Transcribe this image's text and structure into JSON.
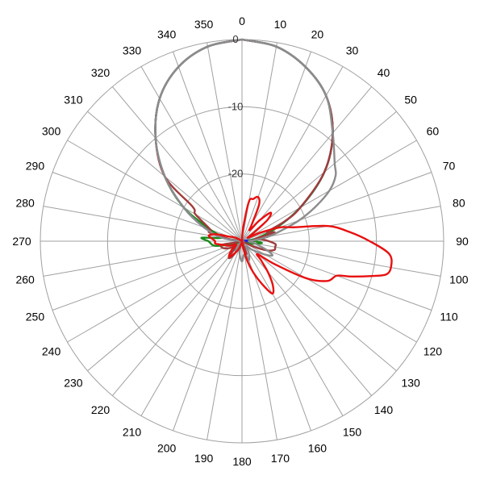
{
  "chart_data": {
    "type": "line",
    "projection": "polar",
    "angle_direction": "clockwise",
    "angle_zero": "top",
    "angle_labels": [
      "0",
      "10",
      "20",
      "30",
      "40",
      "50",
      "60",
      "70",
      "80",
      "90",
      "100",
      "110",
      "120",
      "130",
      "140",
      "150",
      "160",
      "170",
      "180",
      "190",
      "200",
      "210",
      "220",
      "230",
      "240",
      "250",
      "260",
      "270",
      "280",
      "290",
      "300",
      "310",
      "320",
      "330",
      "340",
      "350"
    ],
    "radial_tick_labels": [
      "0",
      "-10",
      "-20"
    ],
    "radial_range_db": [
      -30,
      0
    ],
    "grid": true,
    "legend": "none",
    "series": [
      {
        "color": "#2020e0",
        "points": [
          [
            0,
            0
          ],
          [
            10,
            -0.6
          ],
          [
            20,
            -2.4
          ],
          [
            30,
            -5
          ],
          [
            40,
            -9
          ],
          [
            50,
            -14
          ],
          [
            60,
            -20
          ],
          [
            70,
            -25
          ],
          [
            80,
            -28
          ],
          [
            90,
            -30
          ],
          [
            100,
            -29
          ],
          [
            110,
            -29
          ],
          [
            130,
            -30
          ],
          [
            150,
            -30
          ],
          [
            170,
            -30
          ],
          [
            190,
            -30
          ],
          [
            210,
            -30
          ],
          [
            230,
            -30
          ],
          [
            250,
            -30
          ],
          [
            270,
            -30
          ],
          [
            280,
            -27
          ],
          [
            290,
            -24
          ],
          [
            300,
            -20
          ],
          [
            310,
            -15
          ],
          [
            320,
            -10
          ],
          [
            330,
            -5.5
          ],
          [
            340,
            -2.4
          ],
          [
            350,
            -0.6
          ],
          [
            360,
            0
          ]
        ]
      },
      {
        "color": "#1a8a1a",
        "points": [
          [
            0,
            0
          ],
          [
            10,
            -0.6
          ],
          [
            20,
            -2.4
          ],
          [
            30,
            -5
          ],
          [
            40,
            -9
          ],
          [
            50,
            -14
          ],
          [
            60,
            -20
          ],
          [
            70,
            -25
          ],
          [
            80,
            -28
          ],
          [
            85,
            -29
          ],
          [
            90,
            -28
          ],
          [
            95,
            -27
          ],
          [
            100,
            -28
          ],
          [
            110,
            -29
          ],
          [
            130,
            -30
          ],
          [
            150,
            -30
          ],
          [
            170,
            -30
          ],
          [
            190,
            -30
          ],
          [
            210,
            -30
          ],
          [
            230,
            -30
          ],
          [
            250,
            -29
          ],
          [
            260,
            -26
          ],
          [
            270,
            -25
          ],
          [
            275,
            -24
          ],
          [
            280,
            -27
          ],
          [
            290,
            -25
          ],
          [
            300,
            -20
          ],
          [
            310,
            -15
          ],
          [
            320,
            -10
          ],
          [
            330,
            -5.5
          ],
          [
            340,
            -2.4
          ],
          [
            350,
            -0.6
          ],
          [
            360,
            0
          ]
        ]
      },
      {
        "color": "#a03c3c",
        "points": [
          [
            0,
            0
          ],
          [
            10,
            -0.6
          ],
          [
            20,
            -2.4
          ],
          [
            30,
            -5
          ],
          [
            40,
            -9
          ],
          [
            50,
            -14
          ],
          [
            60,
            -20
          ],
          [
            65,
            -23
          ],
          [
            70,
            -26
          ],
          [
            75,
            -25
          ],
          [
            80,
            -28
          ],
          [
            85,
            -27
          ],
          [
            90,
            -26
          ],
          [
            95,
            -25
          ],
          [
            100,
            -25
          ],
          [
            105,
            -25
          ],
          [
            110,
            -26
          ],
          [
            115,
            -28
          ],
          [
            120,
            -30
          ],
          [
            140,
            -30
          ],
          [
            160,
            -28
          ],
          [
            170,
            -29
          ],
          [
            180,
            -30
          ],
          [
            200,
            -30
          ],
          [
            210,
            -28
          ],
          [
            215,
            -27
          ],
          [
            220,
            -27
          ],
          [
            230,
            -29
          ],
          [
            240,
            -28
          ],
          [
            250,
            -27
          ],
          [
            260,
            -27
          ],
          [
            270,
            -30
          ],
          [
            280,
            -28
          ],
          [
            285,
            -25
          ],
          [
            290,
            -25
          ],
          [
            300,
            -22
          ],
          [
            305,
            -21
          ],
          [
            310,
            -15
          ],
          [
            320,
            -10
          ],
          [
            330,
            -5.5
          ],
          [
            340,
            -2.4
          ],
          [
            350,
            -0.6
          ],
          [
            360,
            0
          ]
        ]
      },
      {
        "color": "#8c8c8c",
        "points": [
          [
            0,
            0
          ],
          [
            10,
            -0.6
          ],
          [
            20,
            -2.4
          ],
          [
            30,
            -5
          ],
          [
            40,
            -9
          ],
          [
            50,
            -12
          ],
          [
            55,
            -13
          ],
          [
            60,
            -15
          ],
          [
            65,
            -18
          ],
          [
            70,
            -21
          ],
          [
            75,
            -24
          ],
          [
            80,
            -26
          ],
          [
            85,
            -28
          ],
          [
            90,
            -29
          ],
          [
            100,
            -28
          ],
          [
            110,
            -26
          ],
          [
            115,
            -25
          ],
          [
            120,
            -26
          ],
          [
            130,
            -28
          ],
          [
            140,
            -29
          ],
          [
            150,
            -28
          ],
          [
            160,
            -27
          ],
          [
            170,
            -28
          ],
          [
            180,
            -27
          ],
          [
            190,
            -28
          ],
          [
            200,
            -29
          ],
          [
            210,
            -28
          ],
          [
            220,
            -29
          ],
          [
            240,
            -30
          ],
          [
            260,
            -30
          ],
          [
            270,
            -30
          ],
          [
            280,
            -27
          ],
          [
            290,
            -24
          ],
          [
            300,
            -20
          ],
          [
            310,
            -15
          ],
          [
            320,
            -10
          ],
          [
            330,
            -5.5
          ],
          [
            340,
            -2.4
          ],
          [
            350,
            -0.6
          ],
          [
            360,
            0
          ]
        ]
      },
      {
        "color": "#e81010",
        "points": [
          [
            0,
            -30
          ],
          [
            5,
            -28
          ],
          [
            10,
            -24
          ],
          [
            15,
            -23.5
          ],
          [
            20,
            -23
          ],
          [
            25,
            -24
          ],
          [
            30,
            -27
          ],
          [
            35,
            -28
          ],
          [
            40,
            -26
          ],
          [
            45,
            -24
          ],
          [
            50,
            -25
          ],
          [
            55,
            -28
          ],
          [
            60,
            -29
          ],
          [
            65,
            -27
          ],
          [
            70,
            -24
          ],
          [
            75,
            -22
          ],
          [
            80,
            -17
          ],
          [
            85,
            -14
          ],
          [
            90,
            -11
          ],
          [
            95,
            -8
          ],
          [
            100,
            -7.5
          ],
          [
            103,
            -8
          ],
          [
            105,
            -10
          ],
          [
            108,
            -13
          ],
          [
            110,
            -15
          ],
          [
            115,
            -16
          ],
          [
            120,
            -19
          ],
          [
            125,
            -24
          ],
          [
            130,
            -27
          ],
          [
            135,
            -26
          ],
          [
            140,
            -24
          ],
          [
            145,
            -22
          ],
          [
            150,
            -21
          ],
          [
            155,
            -23
          ],
          [
            160,
            -25
          ],
          [
            165,
            -27
          ],
          [
            170,
            -29
          ],
          [
            180,
            -30
          ],
          [
            190,
            -30
          ],
          [
            200,
            -29
          ],
          [
            210,
            -28
          ],
          [
            220,
            -27
          ],
          [
            230,
            -28
          ],
          [
            240,
            -29
          ],
          [
            250,
            -28
          ],
          [
            260,
            -27
          ],
          [
            265,
            -26
          ],
          [
            270,
            -26
          ],
          [
            275,
            -25.5
          ],
          [
            280,
            -25
          ],
          [
            285,
            -26
          ],
          [
            290,
            -28
          ],
          [
            300,
            -29
          ],
          [
            320,
            -30
          ],
          [
            340,
            -30
          ],
          [
            360,
            -30
          ]
        ]
      }
    ]
  }
}
